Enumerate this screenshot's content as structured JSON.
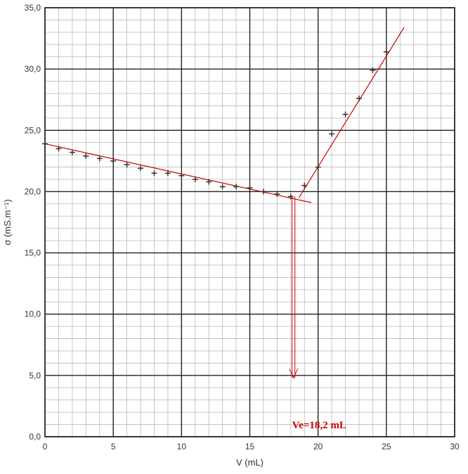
{
  "chart_data": {
    "type": "scatter",
    "xlabel": "V (mL)",
    "ylabel": "σ (mS.m⁻¹)",
    "xlim": [
      0,
      30
    ],
    "ylim": [
      0,
      35
    ],
    "x_ticks": [
      "0",
      "5",
      "10",
      "15",
      "20",
      "25",
      "30"
    ],
    "y_ticks": [
      "0,0",
      "5,0",
      "10,0",
      "15,0",
      "20,0",
      "25,0",
      "30,0",
      "35,0"
    ],
    "grid": true,
    "series": [
      {
        "marker": "+",
        "x": [
          0,
          1,
          2,
          3,
          4,
          5,
          6,
          7,
          8,
          9,
          10,
          11,
          12,
          13,
          14,
          15,
          16,
          17,
          18,
          19,
          20,
          21,
          22,
          23,
          24,
          25
        ],
        "y": [
          23.9,
          23.5,
          23.2,
          22.9,
          22.7,
          22.5,
          22.2,
          21.9,
          21.5,
          21.5,
          21.3,
          21.0,
          20.8,
          20.4,
          20.4,
          20.3,
          20.0,
          19.8,
          19.6,
          20.5,
          22.0,
          24.7,
          26.3,
          27.6,
          29.9,
          31.4
        ]
      }
    ],
    "fit_lines": [
      {
        "x": [
          0,
          19.5
        ],
        "y": [
          23.9,
          19.1
        ]
      },
      {
        "x": [
          18.6,
          26.3
        ],
        "y": [
          19.5,
          33.4
        ]
      }
    ],
    "equivalence": {
      "x": 18.2,
      "y_from": 19.6,
      "y_to": 4.8,
      "label": "Ve=18,2 mL"
    },
    "colors": {
      "line": "#cc0000",
      "marker": "#333333",
      "grid_major": "#222222",
      "grid_minor": "#b8b8b8"
    }
  }
}
